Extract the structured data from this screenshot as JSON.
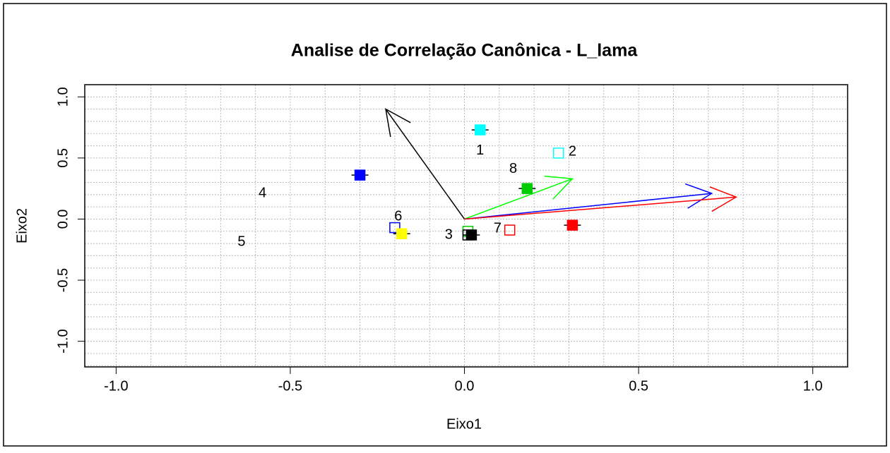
{
  "chart_data": {
    "type": "scatter",
    "title": "Analise de Correlação Canônica - L_lama",
    "xlabel": "Eixo1",
    "ylabel": "Eixo2",
    "xlim": [
      -1.09,
      1.1
    ],
    "ylim": [
      -1.21,
      1.1
    ],
    "xticks": [
      {
        "value": -1,
        "label": "-1.0"
      },
      {
        "value": -0.5,
        "label": "-0.5"
      },
      {
        "value": 0,
        "label": "0.0"
      },
      {
        "value": 0.5,
        "label": "0.5"
      },
      {
        "value": 1,
        "label": "1.0"
      }
    ],
    "yticks": [
      {
        "value": -1,
        "label": "-1.0"
      },
      {
        "value": -0.5,
        "label": "-0.5"
      },
      {
        "value": 0,
        "label": "0.0"
      },
      {
        "value": 0.5,
        "label": "0.5"
      },
      {
        "value": 1,
        "label": "1.0"
      }
    ],
    "grid": true,
    "grid_step": 0.1,
    "points": [
      {
        "x": 0.045,
        "y": 0.73,
        "color": "#00ffff",
        "filled": true
      },
      {
        "x": 0.27,
        "y": 0.54,
        "color": "#00ffff",
        "filled": false
      },
      {
        "x": -0.3,
        "y": 0.36,
        "color": "#0000ff",
        "filled": true
      },
      {
        "x": -0.2,
        "y": -0.07,
        "color": "#0000ff",
        "filled": false
      },
      {
        "x": -0.18,
        "y": -0.12,
        "color": "#ffff00",
        "filled": true
      },
      {
        "x": 0.18,
        "y": 0.25,
        "color": "#00cc00",
        "filled": true
      },
      {
        "x": 0.01,
        "y": -0.1,
        "color": "#00cc00",
        "filled": false
      },
      {
        "x": 0.02,
        "y": -0.13,
        "color": "#000000",
        "filled": true
      },
      {
        "x": 0.01,
        "y": -0.13,
        "color": "#000000",
        "filled": false
      },
      {
        "x": 0.31,
        "y": -0.05,
        "color": "#ff0000",
        "filled": true
      },
      {
        "x": 0.13,
        "y": -0.09,
        "color": "#ff0000",
        "filled": false
      }
    ],
    "labels": [
      {
        "text": "1",
        "x": 0.045,
        "y": 0.56
      },
      {
        "text": "2",
        "x": 0.31,
        "y": 0.55
      },
      {
        "text": "3",
        "x": -0.045,
        "y": -0.13
      },
      {
        "text": "4",
        "x": -0.58,
        "y": 0.21
      },
      {
        "text": "5",
        "x": -0.64,
        "y": -0.19
      },
      {
        "text": "6",
        "x": -0.19,
        "y": 0.02
      },
      {
        "text": "7",
        "x": 0.095,
        "y": -0.08
      },
      {
        "text": "8",
        "x": 0.14,
        "y": 0.41
      }
    ],
    "arrows": [
      {
        "x": -0.226,
        "y": 0.9,
        "color": "#000000"
      },
      {
        "x": 0.31,
        "y": 0.33,
        "color": "#00ff00"
      },
      {
        "x": 0.71,
        "y": 0.21,
        "color": "#0000ff"
      },
      {
        "x": 0.78,
        "y": 0.18,
        "color": "#ff0000"
      }
    ]
  }
}
